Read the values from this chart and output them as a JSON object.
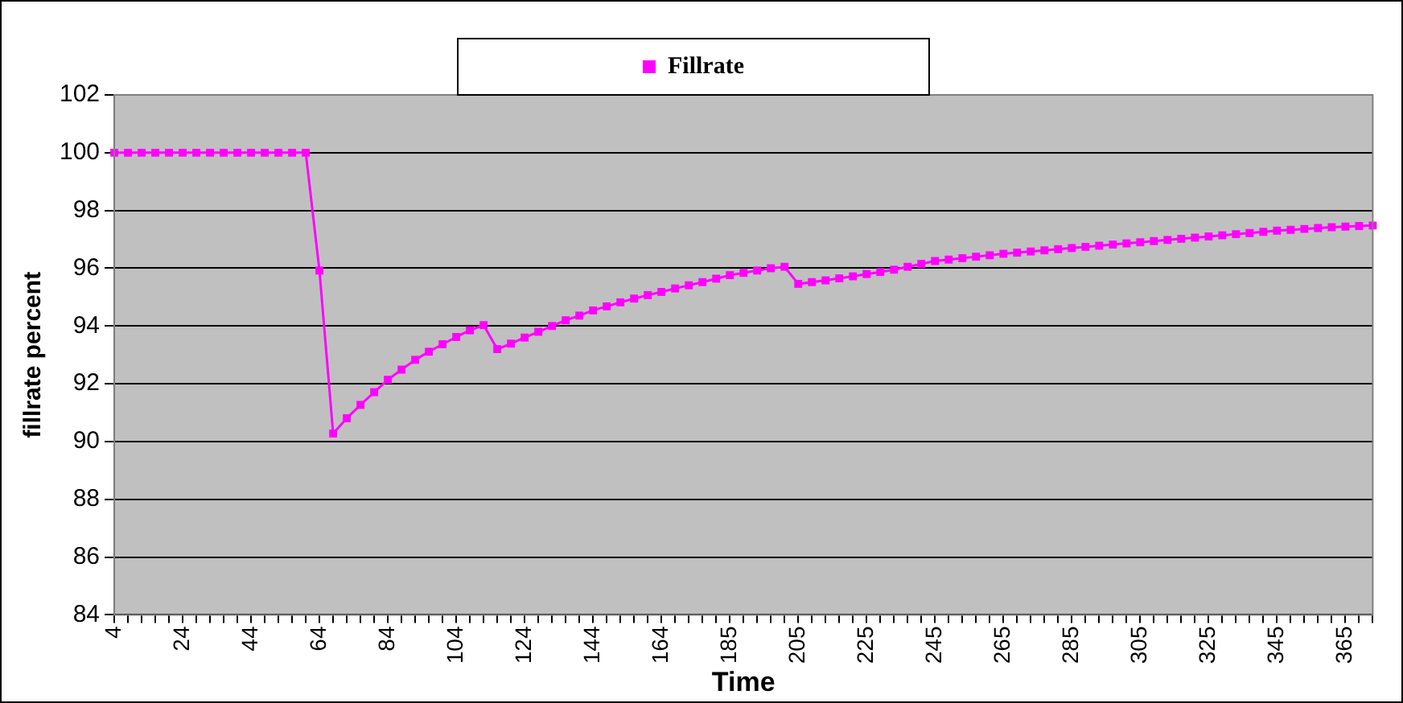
{
  "chart_data": {
    "type": "line",
    "xlabel": "Time",
    "ylabel": "fillrate percent",
    "categories": [
      "4",
      null,
      null,
      null,
      null,
      "24",
      null,
      null,
      null,
      null,
      "44",
      null,
      null,
      null,
      null,
      "64",
      null,
      null,
      null,
      null,
      "84",
      null,
      null,
      null,
      null,
      "104",
      null,
      null,
      null,
      null,
      "124",
      null,
      null,
      null,
      null,
      "144",
      null,
      null,
      null,
      null,
      "164",
      null,
      null,
      null,
      null,
      "185",
      null,
      null,
      null,
      null,
      "205",
      null,
      null,
      null,
      null,
      "225",
      null,
      null,
      null,
      null,
      "245",
      null,
      null,
      null,
      null,
      "265",
      null,
      null,
      null,
      null,
      "285",
      null,
      null,
      null,
      null,
      "305",
      null,
      null,
      null,
      null,
      "325",
      null,
      null,
      null,
      null,
      "345",
      null,
      null,
      null,
      null,
      "365",
      null,
      null
    ],
    "series": [
      {
        "name": "Fillrate",
        "color": "#ff00ff",
        "values": [
          100,
          100,
          100,
          100,
          100,
          100,
          100,
          100,
          100,
          100,
          100,
          100,
          100,
          100,
          100,
          95.92,
          90.28,
          90.81,
          91.27,
          91.71,
          92.14,
          92.49,
          92.83,
          93.11,
          93.37,
          93.62,
          93.85,
          94.03,
          93.2,
          93.39,
          93.6,
          93.8,
          94.0,
          94.2,
          94.36,
          94.54,
          94.68,
          94.82,
          94.95,
          95.07,
          95.18,
          95.3,
          95.41,
          95.52,
          95.64,
          95.76,
          95.84,
          95.92,
          96.0,
          96.05,
          95.46,
          95.52,
          95.58,
          95.65,
          95.72,
          95.8,
          95.87,
          95.95,
          96.05,
          96.15,
          96.25,
          96.3,
          96.35,
          96.4,
          96.45,
          96.5,
          96.54,
          96.58,
          96.62,
          96.66,
          96.7,
          96.74,
          96.78,
          96.82,
          96.86,
          96.9,
          96.94,
          96.98,
          97.02,
          97.06,
          97.1,
          97.14,
          97.18,
          97.22,
          97.26,
          97.3,
          97.33,
          97.36,
          97.39,
          97.42,
          97.44,
          97.46,
          97.48
        ]
      }
    ],
    "ylim": [
      84,
      102
    ],
    "yticks": [
      84,
      86,
      88,
      90,
      92,
      94,
      96,
      98,
      100,
      102
    ],
    "grid": "y",
    "legend": "top",
    "marker": "square",
    "line_style": "solid"
  }
}
